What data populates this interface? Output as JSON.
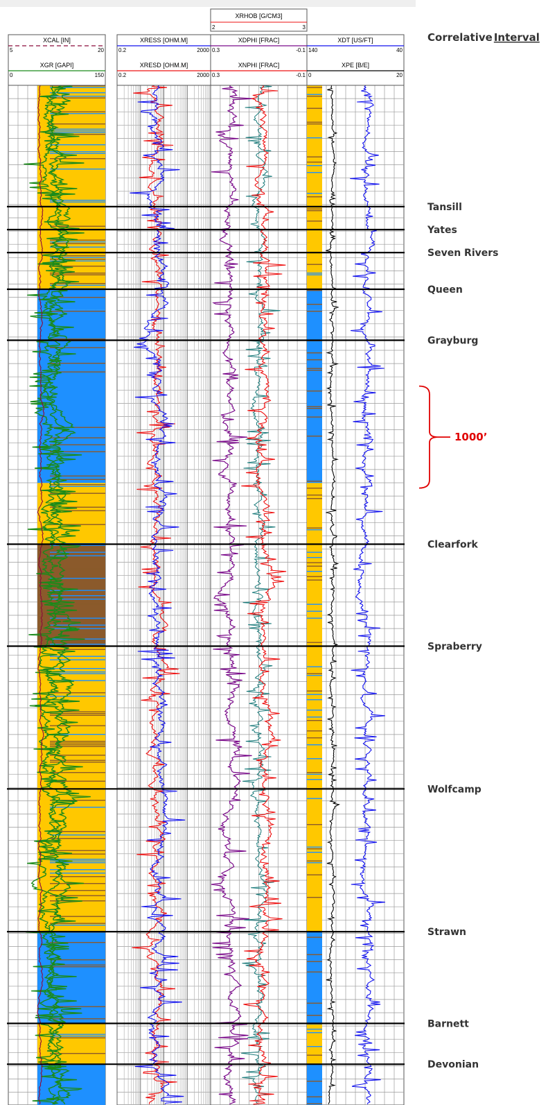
{
  "chart_data": {
    "type": "line",
    "title": "",
    "legend_title": "Correlative Interval",
    "legend_title_parts": [
      "Correlative",
      "Interval"
    ],
    "scale_bar": {
      "label": "1000’",
      "depth_top": 2950,
      "depth_bottom": 3950
    },
    "depth_range": [
      0,
      10000
    ],
    "tracks": [
      {
        "id": "gr_track",
        "curves": [
          {
            "name": "XCAL [IN]",
            "min": "5",
            "max": "20",
            "color": "#8b0a3a"
          },
          {
            "name": "XGR [GAPI]",
            "min": "0",
            "max": "150",
            "color": "#1a8a1a"
          }
        ]
      },
      {
        "id": "res_track",
        "curves": [
          {
            "name": "XRESS [OHM.M]",
            "min": "0.2",
            "max": "2000",
            "color": "#1010ee"
          },
          {
            "name": "XRESD [OHM.M]",
            "min": "0.2",
            "max": "2000",
            "color": "#ee1010"
          }
        ]
      },
      {
        "id": "por_track",
        "curves": [
          {
            "name": "XRHOB [G/CM3]",
            "min": "2",
            "max": "3",
            "color": "#ee1010"
          },
          {
            "name": "XDPHI [FRAC]",
            "min": "0.3",
            "max": "-0.1",
            "color": "#7a0a8a"
          },
          {
            "name": "XNPHI [FRAC]",
            "min": "0.3",
            "max": "-0.1",
            "color": "#ee1010"
          }
        ]
      },
      {
        "id": "dt_track",
        "curves": [
          {
            "name": "XDT [US/FT]",
            "min": "140",
            "max": "40",
            "color": "#1010ee"
          },
          {
            "name": "XPE [B/E]",
            "min": "0",
            "max": "20",
            "color": "#000000"
          }
        ]
      }
    ],
    "formations": [
      {
        "name": "Tansill",
        "depth": 1190
      },
      {
        "name": "Yates",
        "depth": 1415
      },
      {
        "name": "Seven Rivers",
        "depth": 1640
      },
      {
        "name": "Queen",
        "depth": 2000
      },
      {
        "name": "Grayburg",
        "depth": 2500
      },
      {
        "name": "Clearfork",
        "depth": 4500
      },
      {
        "name": "Spraberry",
        "depth": 5500
      },
      {
        "name": "Wolfcamp",
        "depth": 6900
      },
      {
        "name": "Strawn",
        "depth": 8300
      },
      {
        "name": "Barnett",
        "depth": 9200
      },
      {
        "name": "Devonian",
        "depth": 9600
      }
    ],
    "lithology_colors": {
      "shale": "#1f8a1f",
      "limestone": "#1e90ff",
      "sandstone": "#ffc800",
      "dolomite": "#8b5a2b"
    },
    "lithology_intervals": [
      {
        "top": 0,
        "base": 1190,
        "primary": "sandstone",
        "secondary": "shale"
      },
      {
        "top": 1190,
        "base": 2000,
        "primary": "sandstone",
        "secondary": "shale"
      },
      {
        "top": 2000,
        "base": 2200,
        "primary": "limestone",
        "secondary": "shale"
      },
      {
        "top": 2200,
        "base": 2500,
        "primary": "limestone",
        "secondary": "shale"
      },
      {
        "top": 2500,
        "base": 3900,
        "primary": "limestone",
        "secondary": "shale"
      },
      {
        "top": 3900,
        "base": 4500,
        "primary": "sandstone",
        "secondary": "shale"
      },
      {
        "top": 4500,
        "base": 5500,
        "primary": "dolomite",
        "secondary": "shale"
      },
      {
        "top": 5500,
        "base": 6900,
        "primary": "sandstone",
        "secondary": "shale"
      },
      {
        "top": 6900,
        "base": 8300,
        "primary": "sandstone",
        "secondary": "shale"
      },
      {
        "top": 8300,
        "base": 9200,
        "primary": "limestone",
        "secondary": "shale"
      },
      {
        "top": 9200,
        "base": 9600,
        "primary": "sandstone",
        "secondary": "shale"
      },
      {
        "top": 9600,
        "base": 10000,
        "primary": "limestone",
        "secondary": "shale"
      }
    ]
  }
}
